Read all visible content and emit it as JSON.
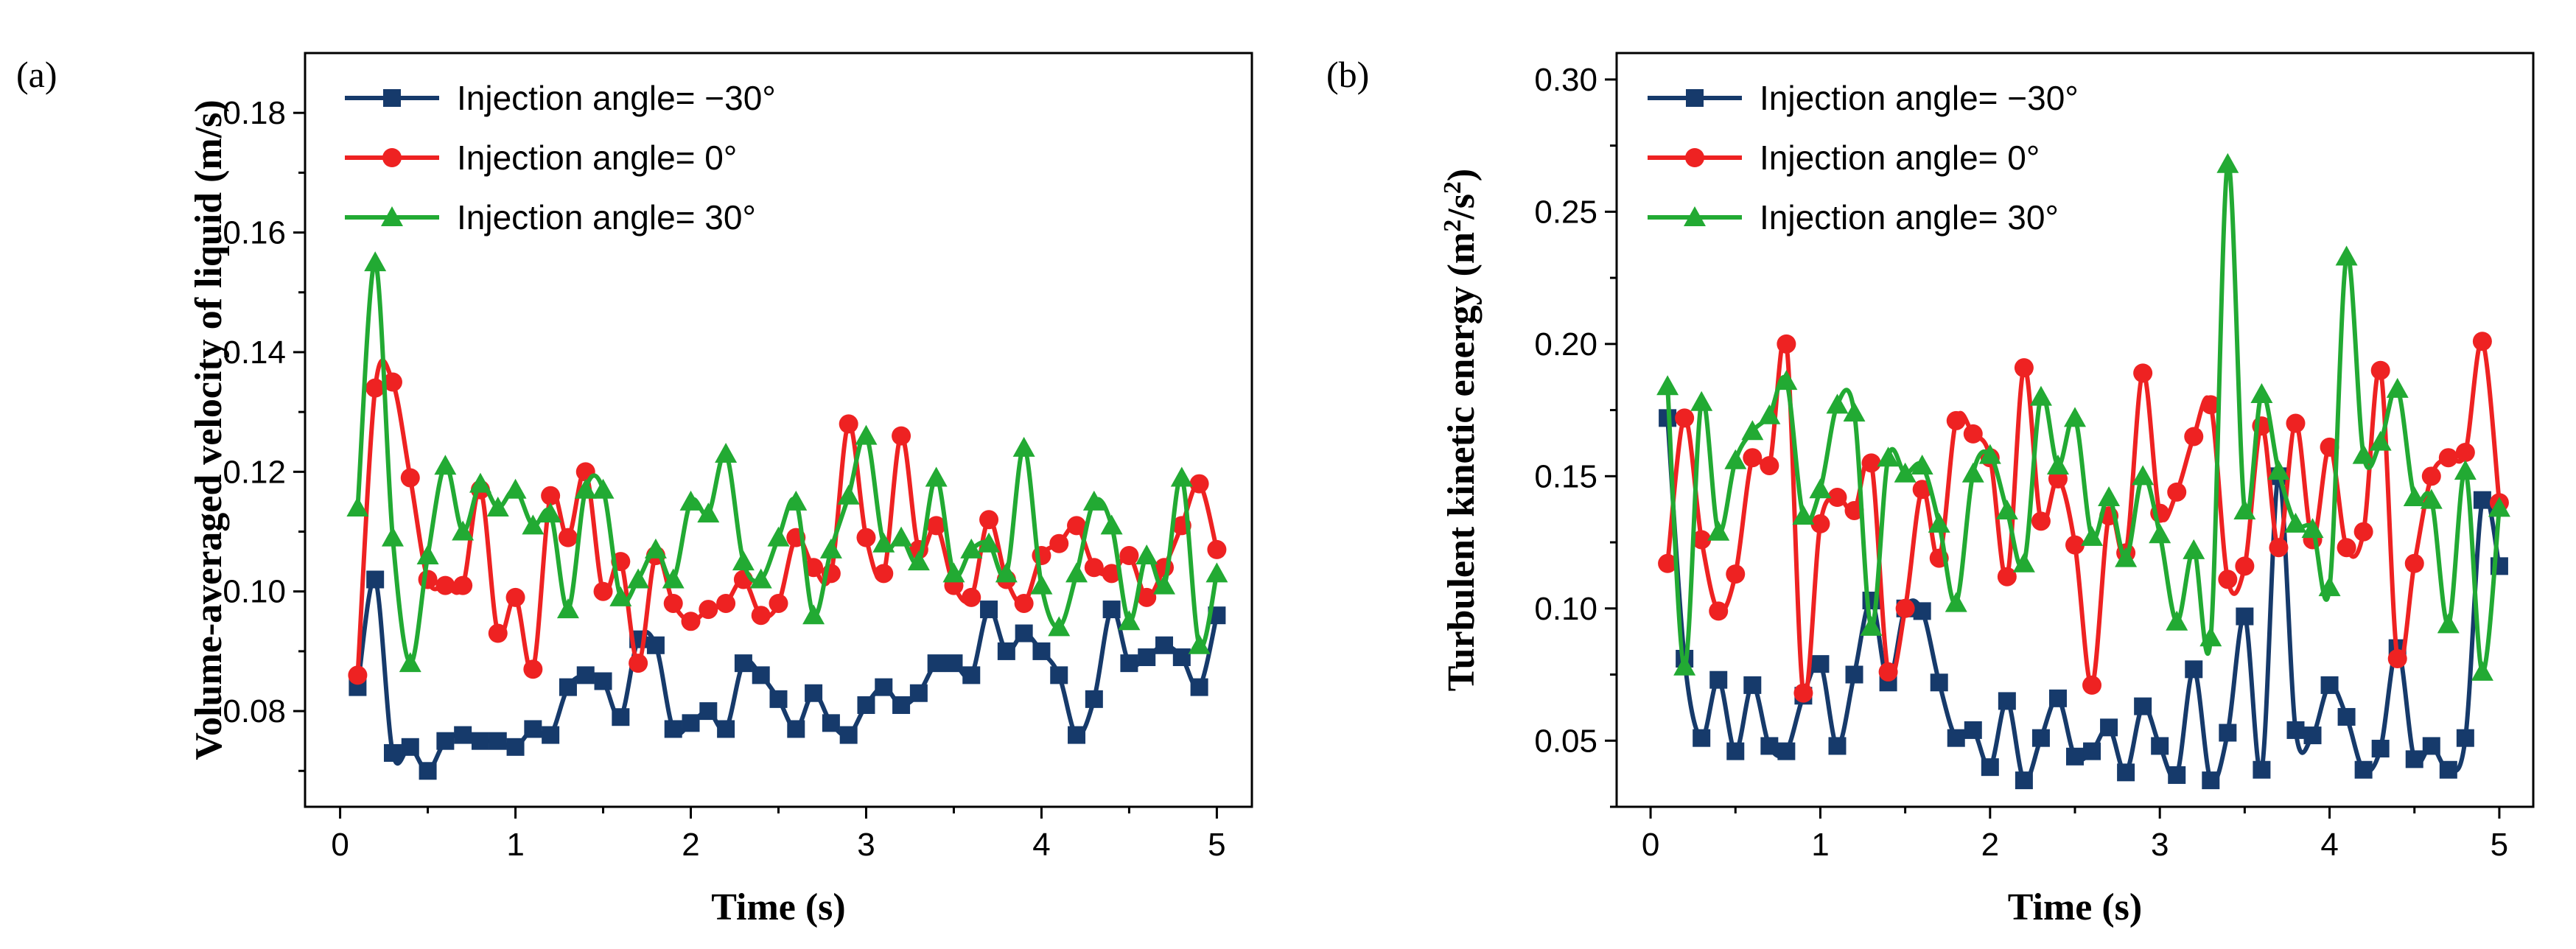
{
  "chart_data": [
    {
      "type": "line",
      "panel_label": "(a)",
      "xlabel": "Time (s)",
      "ylabel": "Volume-averaged velocity of liquid (m/s)",
      "xlim": [
        -0.2,
        5.2
      ],
      "ylim": [
        0.064,
        0.19
      ],
      "xticks": [
        "0",
        "1",
        "2",
        "3",
        "4",
        "5"
      ],
      "yticks": [
        "0.08",
        "0.10",
        "0.12",
        "0.14",
        "0.16",
        "0.18"
      ],
      "legend": "top-left",
      "x": [
        0.1,
        0.2,
        0.3,
        0.4,
        0.5,
        0.6,
        0.7,
        0.8,
        0.9,
        1.0,
        1.1,
        1.2,
        1.3,
        1.4,
        1.5,
        1.6,
        1.7,
        1.8,
        1.9,
        2.0,
        2.1,
        2.2,
        2.3,
        2.4,
        2.5,
        2.6,
        2.7,
        2.8,
        2.9,
        3.0,
        3.1,
        3.2,
        3.3,
        3.4,
        3.5,
        3.6,
        3.7,
        3.8,
        3.9,
        4.0,
        4.1,
        4.2,
        4.3,
        4.4,
        4.5,
        4.6,
        4.7,
        4.8,
        4.9,
        5.0
      ],
      "series": [
        {
          "name": "Injection angle= −30°",
          "color": "#163a6b",
          "marker": "square",
          "values": [
            0.084,
            0.102,
            0.073,
            0.074,
            0.07,
            0.075,
            0.076,
            0.075,
            0.075,
            0.074,
            0.077,
            0.076,
            0.084,
            0.086,
            0.085,
            0.079,
            0.092,
            0.091,
            0.077,
            0.078,
            0.08,
            0.077,
            0.088,
            0.086,
            0.082,
            0.077,
            0.083,
            0.078,
            0.076,
            0.081,
            0.084,
            0.081,
            0.083,
            0.088,
            0.088,
            0.086,
            0.097,
            0.09,
            0.093,
            0.09,
            0.086,
            0.076,
            0.082,
            0.097,
            0.088,
            0.089,
            0.091,
            0.089,
            0.084,
            0.096
          ]
        },
        {
          "name": "Injection angle= 0°",
          "color": "#ee2222",
          "marker": "circle",
          "values": [
            0.086,
            0.134,
            0.135,
            0.119,
            0.102,
            0.101,
            0.101,
            0.117,
            0.093,
            0.099,
            0.087,
            0.116,
            0.109,
            0.12,
            0.1,
            0.105,
            0.088,
            0.106,
            0.098,
            0.095,
            0.097,
            0.098,
            0.102,
            0.096,
            0.098,
            0.109,
            0.104,
            0.103,
            0.128,
            0.109,
            0.103,
            0.126,
            0.107,
            0.111,
            0.101,
            0.099,
            0.112,
            0.102,
            0.098,
            0.106,
            0.108,
            0.111,
            0.104,
            0.103,
            0.106,
            0.099,
            0.104,
            0.111,
            0.118,
            0.107
          ]
        },
        {
          "name": "Injection angle= 30°",
          "color": "#22aa33",
          "marker": "triangle",
          "values": [
            0.114,
            0.155,
            0.109,
            0.088,
            0.106,
            0.121,
            0.11,
            0.118,
            0.114,
            0.117,
            0.111,
            0.113,
            0.097,
            0.117,
            0.117,
            0.099,
            0.102,
            0.107,
            0.102,
            0.115,
            0.113,
            0.123,
            0.105,
            0.102,
            0.109,
            0.115,
            0.096,
            0.107,
            0.116,
            0.126,
            0.108,
            0.109,
            0.105,
            0.119,
            0.103,
            0.107,
            0.108,
            0.103,
            0.124,
            0.101,
            0.094,
            0.103,
            0.115,
            0.111,
            0.095,
            0.106,
            0.101,
            0.119,
            0.091,
            0.103
          ]
        }
      ]
    },
    {
      "type": "line",
      "panel_label": "(b)",
      "xlabel": "Time (s)",
      "ylabel": "Turbulent kinetic energy (m²/s²)",
      "xlim": [
        -0.2,
        5.2
      ],
      "ylim": [
        0.025,
        0.31
      ],
      "xticks": [
        "0",
        "1",
        "2",
        "3",
        "4",
        "5"
      ],
      "yticks": [
        "0.05",
        "0.10",
        "0.15",
        "0.20",
        "0.25",
        "0.30"
      ],
      "legend": "top-left",
      "x": [
        0.1,
        0.2,
        0.3,
        0.4,
        0.5,
        0.6,
        0.7,
        0.8,
        0.9,
        1.0,
        1.1,
        1.2,
        1.3,
        1.4,
        1.5,
        1.6,
        1.7,
        1.8,
        1.9,
        2.0,
        2.1,
        2.2,
        2.3,
        2.4,
        2.5,
        2.6,
        2.7,
        2.8,
        2.9,
        3.0,
        3.1,
        3.2,
        3.3,
        3.4,
        3.5,
        3.6,
        3.7,
        3.8,
        3.9,
        4.0,
        4.1,
        4.2,
        4.3,
        4.4,
        4.5,
        4.6,
        4.7,
        4.8,
        4.9,
        5.0
      ],
      "series": [
        {
          "name": "Injection angle= −30°",
          "color": "#163a6b",
          "marker": "square",
          "values": [
            0.172,
            0.081,
            0.051,
            0.073,
            0.046,
            0.071,
            0.048,
            0.046,
            0.067,
            0.079,
            0.048,
            0.075,
            0.103,
            0.072,
            0.1,
            0.099,
            0.072,
            0.051,
            0.054,
            0.04,
            0.065,
            0.035,
            0.051,
            0.066,
            0.044,
            0.046,
            0.055,
            0.038,
            0.063,
            0.048,
            0.037,
            0.077,
            0.035,
            0.053,
            0.097,
            0.039,
            0.15,
            0.054,
            0.052,
            0.071,
            0.059,
            0.039,
            0.047,
            0.085,
            0.043,
            0.048,
            0.039,
            0.051,
            0.141,
            0.116
          ]
        },
        {
          "name": "Injection angle= 0°",
          "color": "#ee2222",
          "marker": "circle",
          "values": [
            0.117,
            0.172,
            0.126,
            0.099,
            0.113,
            0.157,
            0.154,
            0.2,
            0.068,
            0.132,
            0.142,
            0.137,
            0.155,
            0.076,
            0.1,
            0.145,
            0.119,
            0.171,
            0.166,
            0.157,
            0.112,
            0.191,
            0.133,
            0.149,
            0.124,
            0.071,
            0.135,
            0.121,
            0.189,
            0.136,
            0.144,
            0.165,
            0.177,
            0.111,
            0.116,
            0.169,
            0.123,
            0.17,
            0.126,
            0.161,
            0.123,
            0.129,
            0.19,
            0.081,
            0.117,
            0.15,
            0.157,
            0.159,
            0.201,
            0.14
          ]
        },
        {
          "name": "Injection angle= 30°",
          "color": "#22aa33",
          "marker": "triangle",
          "values": [
            0.184,
            0.078,
            0.178,
            0.129,
            0.156,
            0.167,
            0.173,
            0.186,
            0.135,
            0.145,
            0.177,
            0.174,
            0.093,
            0.157,
            0.151,
            0.154,
            0.132,
            0.102,
            0.151,
            0.158,
            0.137,
            0.117,
            0.18,
            0.154,
            0.172,
            0.127,
            0.142,
            0.119,
            0.15,
            0.128,
            0.095,
            0.122,
            0.089,
            0.268,
            0.137,
            0.181,
            0.152,
            0.132,
            0.13,
            0.108,
            0.233,
            0.158,
            0.163,
            0.183,
            0.142,
            0.141,
            0.094,
            0.152,
            0.076,
            0.138
          ]
        }
      ]
    }
  ]
}
